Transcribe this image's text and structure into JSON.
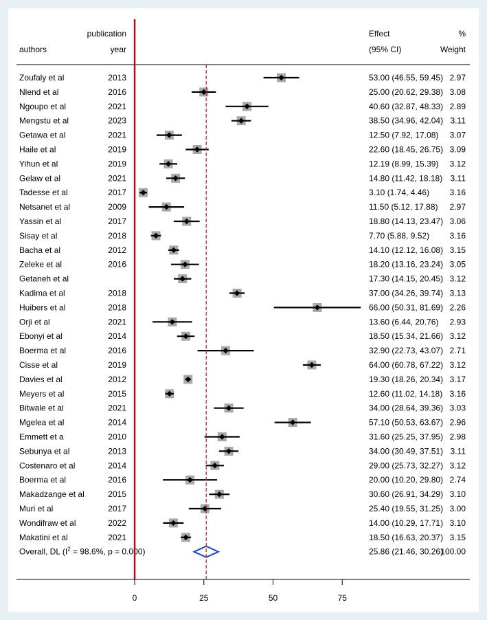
{
  "chart_data": {
    "type": "forest",
    "headers": {
      "authors": "authors",
      "year_line1": "publication",
      "year_line2": "year",
      "effect_line1": "Effect",
      "effect_line2": "(95% CI)",
      "weight_line1": "%",
      "weight_line2": "Weight"
    },
    "x_ticks": [
      0,
      25,
      50,
      75
    ],
    "xlim": [
      0,
      82
    ],
    "reference_line": 0,
    "pooled_line": 25.86,
    "studies": [
      {
        "author": "Zoufaly et al",
        "year": "2013",
        "est": 53.0,
        "lo": 46.55,
        "hi": 59.45,
        "ci": "53.00 (46.55, 59.45)",
        "weight": "2.97"
      },
      {
        "author": "Nlend et al",
        "year": "2016",
        "est": 25.0,
        "lo": 20.62,
        "hi": 29.38,
        "ci": "25.00 (20.62, 29.38)",
        "weight": "3.08"
      },
      {
        "author": "Ngoupo et al",
        "year": "2021",
        "est": 40.6,
        "lo": 32.87,
        "hi": 48.33,
        "ci": "40.60 (32.87, 48.33)",
        "weight": "2.89"
      },
      {
        "author": "Mengstu et al",
        "year": "2023",
        "est": 38.5,
        "lo": 34.96,
        "hi": 42.04,
        "ci": "38.50 (34.96, 42.04)",
        "weight": "3.11"
      },
      {
        "author": "Getawa et al",
        "year": "2021",
        "est": 12.5,
        "lo": 7.92,
        "hi": 17.08,
        "ci": "12.50 (7.92, 17.08)",
        "weight": "3.07"
      },
      {
        "author": "Haile et al",
        "year": "2019",
        "est": 22.6,
        "lo": 18.45,
        "hi": 26.75,
        "ci": "22.60 (18.45, 26.75)",
        "weight": "3.09"
      },
      {
        "author": "Yihun et al",
        "year": "2019",
        "est": 12.19,
        "lo": 8.99,
        "hi": 15.39,
        "ci": "12.19 (8.99, 15.39)",
        "weight": "3.12"
      },
      {
        "author": "Gelaw et al",
        "year": "2021",
        "est": 14.8,
        "lo": 11.42,
        "hi": 18.18,
        "ci": "14.80 (11.42, 18.18)",
        "weight": "3.11"
      },
      {
        "author": "Tadesse et al",
        "year": "2017",
        "est": 3.1,
        "lo": 1.74,
        "hi": 4.46,
        "ci": "3.10 (1.74, 4.46)",
        "weight": "3.16"
      },
      {
        "author": "Netsanet et al",
        "year": "2009",
        "est": 11.5,
        "lo": 5.12,
        "hi": 17.88,
        "ci": "11.50 (5.12, 17.88)",
        "weight": "2.97"
      },
      {
        "author": "Yassin et al",
        "year": "2017",
        "est": 18.8,
        "lo": 14.13,
        "hi": 23.47,
        "ci": "18.80 (14.13, 23.47)",
        "weight": "3.06"
      },
      {
        "author": "Sisay et al",
        "year": "2018",
        "est": 7.7,
        "lo": 5.88,
        "hi": 9.52,
        "ci": "7.70 (5.88, 9.52)",
        "weight": "3.16"
      },
      {
        "author": "Bacha et al",
        "year": "2012",
        "est": 14.1,
        "lo": 12.12,
        "hi": 16.08,
        "ci": "14.10 (12.12, 16.08)",
        "weight": "3.15"
      },
      {
        "author": "Zeleke et al",
        "year": "2016",
        "est": 18.2,
        "lo": 13.16,
        "hi": 23.24,
        "ci": "18.20 (13.16, 23.24)",
        "weight": "3.05"
      },
      {
        "author": "Getaneh et al",
        "year": "",
        "est": 17.3,
        "lo": 14.15,
        "hi": 20.45,
        "ci": "17.30 (14.15, 20.45)",
        "weight": "3.12"
      },
      {
        "author": "Kadima et al",
        "year": "2018",
        "est": 37.0,
        "lo": 34.26,
        "hi": 39.74,
        "ci": "37.00 (34.26, 39.74)",
        "weight": "3.13"
      },
      {
        "author": "Huibers et al",
        "year": "2018",
        "est": 66.0,
        "lo": 50.31,
        "hi": 81.69,
        "ci": "66.00 (50.31, 81.69)",
        "weight": "2.26"
      },
      {
        "author": "Orji et al",
        "year": "2021",
        "est": 13.6,
        "lo": 6.44,
        "hi": 20.76,
        "ci": "13.60 (6.44, 20.76)",
        "weight": "2.93"
      },
      {
        "author": "Ebonyi et al",
        "year": "2014",
        "est": 18.5,
        "lo": 15.34,
        "hi": 21.66,
        "ci": "18.50 (15.34, 21.66)",
        "weight": "3.12"
      },
      {
        "author": "Boerma et al",
        "year": "2016",
        "est": 32.9,
        "lo": 22.73,
        "hi": 43.07,
        "ci": "32.90 (22.73, 43.07)",
        "weight": "2.71"
      },
      {
        "author": "Cisse et al",
        "year": "2019",
        "est": 64.0,
        "lo": 60.78,
        "hi": 67.22,
        "ci": "64.00 (60.78, 67.22)",
        "weight": "3.12"
      },
      {
        "author": "Davies et al",
        "year": "2012",
        "est": 19.3,
        "lo": 18.26,
        "hi": 20.34,
        "ci": "19.30 (18.26, 20.34)",
        "weight": "3.17"
      },
      {
        "author": "Meyers et al",
        "year": "2015",
        "est": 12.6,
        "lo": 11.02,
        "hi": 14.18,
        "ci": "12.60 (11.02, 14.18)",
        "weight": "3.16"
      },
      {
        "author": "Bitwale et al",
        "year": "2021",
        "est": 34.0,
        "lo": 28.64,
        "hi": 39.36,
        "ci": "34.00 (28.64, 39.36)",
        "weight": "3.03"
      },
      {
        "author": "Mgelea et al",
        "year": "2014",
        "est": 57.1,
        "lo": 50.53,
        "hi": 63.67,
        "ci": "57.10 (50.53, 63.67)",
        "weight": "2.96"
      },
      {
        "author": "Emmett et a",
        "year": "2010",
        "est": 31.6,
        "lo": 25.25,
        "hi": 37.95,
        "ci": "31.60 (25.25, 37.95)",
        "weight": "2.98"
      },
      {
        "author": "Sebunya et al",
        "year": "2013",
        "est": 34.0,
        "lo": 30.49,
        "hi": 37.51,
        "ci": "34.00 (30.49, 37.51)",
        "weight": "3.11"
      },
      {
        "author": "Costenaro et al",
        "year": "2014",
        "est": 29.0,
        "lo": 25.73,
        "hi": 32.27,
        "ci": "29.00 (25.73, 32.27)",
        "weight": "3.12"
      },
      {
        "author": "Boerma et al",
        "year": "2016",
        "est": 20.0,
        "lo": 10.2,
        "hi": 29.8,
        "ci": "20.00 (10.20, 29.80)",
        "weight": "2.74"
      },
      {
        "author": "Makadzange et al",
        "year": "2015",
        "est": 30.6,
        "lo": 26.91,
        "hi": 34.29,
        "ci": "30.60 (26.91, 34.29)",
        "weight": "3.10"
      },
      {
        "author": "Muri et al",
        "year": "2017",
        "est": 25.4,
        "lo": 19.55,
        "hi": 31.25,
        "ci": "25.40 (19.55, 31.25)",
        "weight": "3.00"
      },
      {
        "author": "Wondifraw  et al",
        "year": "2022",
        "est": 14.0,
        "lo": 10.29,
        "hi": 17.71,
        "ci": "14.00 (10.29, 17.71)",
        "weight": "3.10"
      },
      {
        "author": "Makatini et al",
        "year": "2021",
        "est": 18.5,
        "lo": 16.63,
        "hi": 20.37,
        "ci": "18.50 (16.63, 20.37)",
        "weight": "3.15"
      }
    ],
    "overall": {
      "label_pre": "Overall, DL (I",
      "label_sup": "2",
      "label_post": " = 98.6%, p = 0.000)",
      "est": 25.86,
      "lo": 21.46,
      "hi": 30.26,
      "ci": "25.86 (21.46, 30.26)",
      "weight": "100.00"
    },
    "colors": {
      "reference_line": "#cc0000",
      "pooled_line": "#8b3a3a",
      "weight_box": "#a9a9a9",
      "point": "#000000",
      "diamond": "#1f3fd6",
      "frame": "#e6f0f5"
    }
  }
}
